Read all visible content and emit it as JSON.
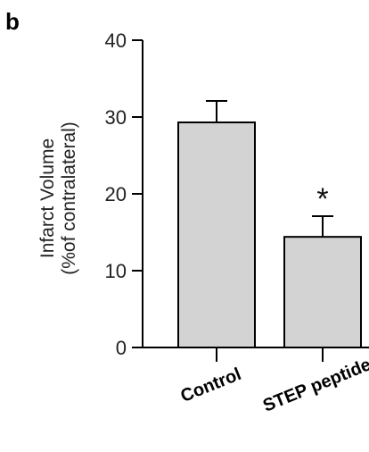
{
  "panel_label": "b",
  "chart_data": {
    "type": "bar",
    "categories": [
      "Control",
      "STEP peptide"
    ],
    "values": [
      29.3,
      14.4
    ],
    "errors": [
      2.8,
      2.7
    ],
    "ylabel_line1": "Infarct Volume",
    "ylabel_line2": "(%of contralateral)",
    "ylim": [
      0,
      40
    ],
    "yticks": [
      0,
      10,
      20,
      30,
      40
    ],
    "annotations": [
      {
        "category": "STEP peptide",
        "text": "*"
      }
    ],
    "bar_color": "#d3d3d3",
    "grid": false
  }
}
